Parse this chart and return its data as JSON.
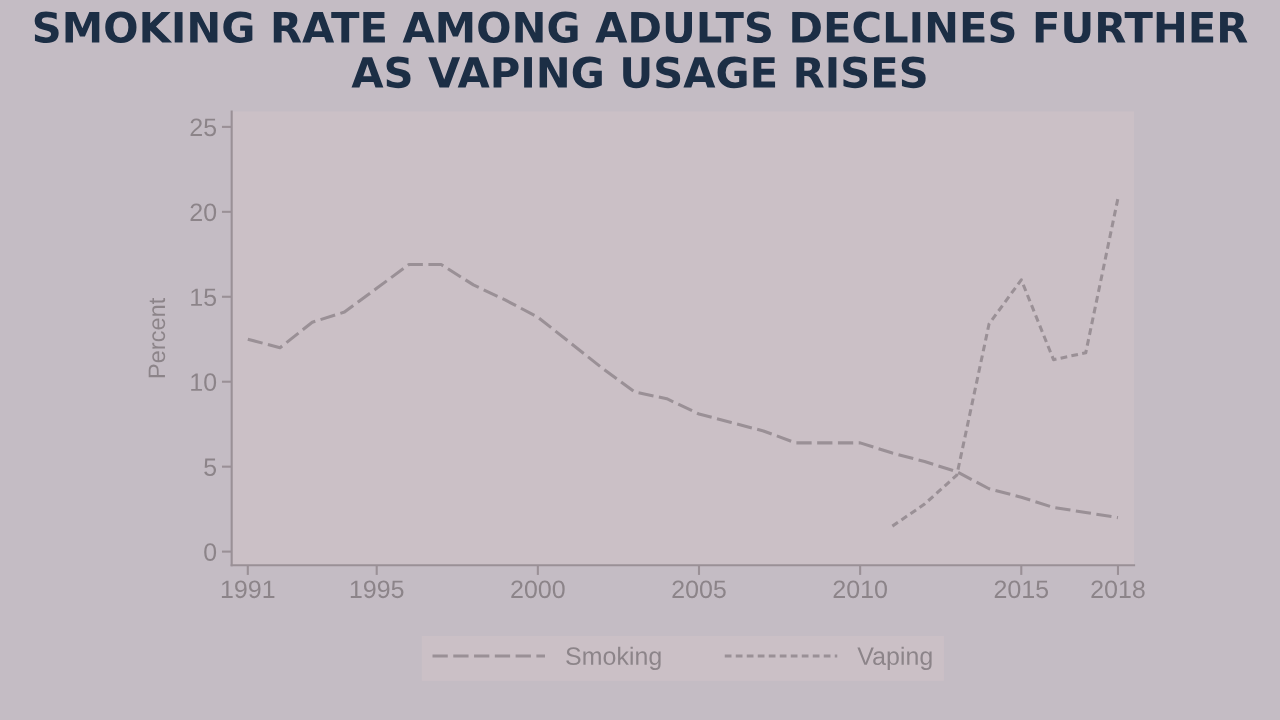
{
  "chart_data": {
    "type": "line",
    "title": "SMOKING RATE AMONG ADULTS DECLINES FURTHER AS VAPING USAGE RISES",
    "ylabel": "Percent",
    "series": [
      {
        "name": "Smoking",
        "color": "#9a9096",
        "line_style": "dashed",
        "x": [
          1991,
          1992,
          1993,
          1994,
          1995,
          1996,
          1997,
          1998,
          1999,
          2000,
          2001,
          2002,
          2003,
          2004,
          2005,
          2006,
          2007,
          2008,
          2009,
          2010,
          2011,
          2012,
          2013,
          2014,
          2015,
          2016,
          2017,
          2018
        ],
        "values": [
          12.5,
          12.0,
          13.5,
          14.1,
          15.5,
          16.9,
          16.9,
          15.7,
          14.8,
          13.8,
          12.3,
          10.8,
          9.4,
          9.0,
          8.1,
          7.6,
          7.1,
          6.4,
          6.4,
          6.4,
          5.8,
          5.3,
          4.7,
          3.7,
          3.2,
          2.6,
          2.3,
          2.0
        ]
      },
      {
        "name": "Vaping",
        "color": "#9a9096",
        "line_style": "dashed",
        "x": [
          2011,
          2012,
          2013,
          2014,
          2015,
          2016,
          2017,
          2018
        ],
        "values": [
          1.5,
          2.8,
          4.5,
          13.4,
          16.0,
          11.3,
          11.7,
          20.8
        ]
      }
    ],
    "xlim": [
      1990.5,
      2018.5
    ],
    "xticks": [
      1991,
      1995,
      2000,
      2005,
      2010,
      2015,
      2018
    ],
    "ylim": [
      -0.8,
      25.9
    ],
    "yticks": [
      0,
      5,
      10,
      15,
      20,
      25
    ],
    "legend": "bottom"
  }
}
